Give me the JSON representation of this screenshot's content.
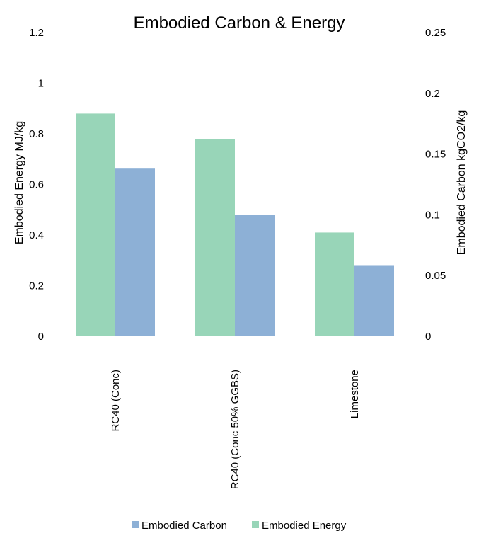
{
  "chart_data": {
    "type": "bar",
    "title": "Embodied Carbon & Energy",
    "categories": [
      "RC40 (Conc)",
      "RC40 (Conc 50% GGBS)",
      "Limestone"
    ],
    "series": [
      {
        "name": "Embodied Energy",
        "axis": "left",
        "color": "#98d5b8",
        "values": [
          0.88,
          0.78,
          0.41
        ]
      },
      {
        "name": "Embodied Carbon",
        "axis": "right",
        "color": "#8db0d6",
        "values": [
          0.138,
          0.1,
          0.058
        ]
      }
    ],
    "ylabel": "Embodied Energy MJ/kg",
    "y2label": "Embodied Carbon kgCO2/kg",
    "ylim": [
      0,
      1.2
    ],
    "y2lim": [
      0,
      0.25
    ],
    "yticks": [
      "0",
      "0.2",
      "0.4",
      "0.6",
      "0.8",
      "1",
      "1.2"
    ],
    "y2ticks": [
      "0",
      "0.05",
      "0.1",
      "0.15",
      "0.2",
      "0.25"
    ],
    "legend": {
      "placement": "bottom",
      "order": [
        "Embodied Carbon",
        "Embodied Energy"
      ]
    },
    "grid": false
  }
}
